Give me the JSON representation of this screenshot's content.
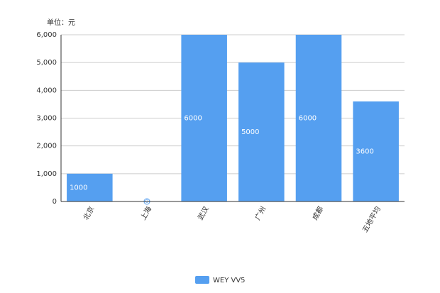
{
  "chart_data": {
    "type": "bar",
    "unit_label": "单位：元",
    "categories": [
      "北京",
      "上海",
      "武汉",
      "广州",
      "成都",
      "五地平均"
    ],
    "series": [
      {
        "name": "WEY VV5",
        "color": "#559ff0",
        "values": [
          1000,
          0,
          6000,
          5000,
          6000,
          3600
        ]
      }
    ],
    "ylim": [
      0,
      6000
    ],
    "yticks": [
      0,
      {
        "value": 1000,
        "label": "1,000"
      },
      {
        "value": 2000,
        "label": "2,000"
      },
      {
        "value": 3000,
        "label": "3,000"
      },
      {
        "value": 4000,
        "label": "4,000"
      },
      {
        "value": 5000,
        "label": "5,000"
      },
      {
        "value": 6000,
        "label": "6,000"
      }
    ],
    "grid": true,
    "legend": "bottom"
  }
}
